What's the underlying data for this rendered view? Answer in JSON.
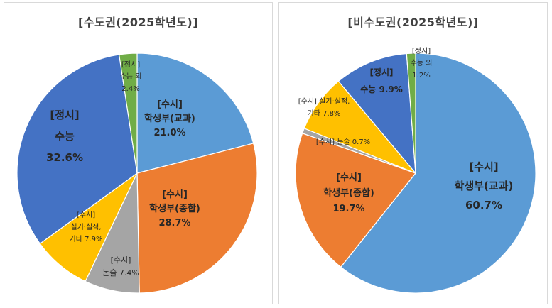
{
  "chart_data": [
    {
      "type": "pie",
      "title": "[수도권(2025학년도)]",
      "slices": [
        {
          "label": [
            "[수시]",
            "학생부(교과)",
            "21.0%"
          ],
          "value": 21.0,
          "color": "#5b9bd5"
        },
        {
          "label": [
            "[수시]",
            "학생부(종합)",
            "28.7%"
          ],
          "value": 28.7,
          "color": "#ed7d31"
        },
        {
          "label": [
            "[수시]",
            "논술 7.4%"
          ],
          "value": 7.4,
          "color": "#a5a5a5"
        },
        {
          "label": [
            "[수시]",
            "실기·실적,",
            "기타 7.9%"
          ],
          "value": 7.9,
          "color": "#ffc000"
        },
        {
          "label": [
            "[정시]",
            "수능",
            "32.6%"
          ],
          "value": 32.6,
          "color": "#4472c4"
        },
        {
          "label": [
            "[정시]",
            "수능 외",
            "2.4%"
          ],
          "value": 2.4,
          "color": "#70ad47"
        }
      ]
    },
    {
      "type": "pie",
      "title": "[비수도권(2025학년도)]",
      "slices": [
        {
          "label": [
            "[수시]",
            "학생부(교과)",
            "60.7%"
          ],
          "value": 60.7,
          "color": "#5b9bd5"
        },
        {
          "label": [
            "[수시]",
            "학생부(종합)",
            "19.7%"
          ],
          "value": 19.7,
          "color": "#ed7d31"
        },
        {
          "label": [
            "[수시] 논술 0.7%"
          ],
          "value": 0.7,
          "color": "#a5a5a5"
        },
        {
          "label": [
            "[수시] 실기·실적,",
            "기타 7.8%"
          ],
          "value": 7.8,
          "color": "#ffc000"
        },
        {
          "label": [
            "[정시]",
            "수능 9.9%"
          ],
          "value": 9.9,
          "color": "#4472c4"
        },
        {
          "label": [
            "[정시]",
            "수능 외",
            "1.2%"
          ],
          "value": 1.2,
          "color": "#70ad47"
        }
      ]
    }
  ]
}
